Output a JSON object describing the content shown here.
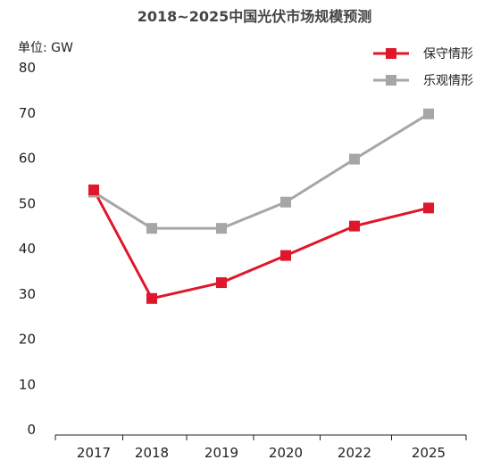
{
  "chart_data": {
    "type": "line",
    "title": "2018~2025中国光伏市场规模预测",
    "unit_label": "单位: GW",
    "categories": [
      "2017",
      "2018",
      "2019",
      "2020",
      "2022",
      "2025"
    ],
    "ylim": [
      0,
      80
    ],
    "y_ticks": [
      "0",
      "10",
      "20",
      "30",
      "40",
      "50",
      "60",
      "70",
      "80"
    ],
    "legend_position": "top-right",
    "grid": false,
    "series": [
      {
        "name": "保守情形",
        "color": "#e0162b",
        "values": [
          53,
          29,
          32.5,
          38.5,
          45,
          49
        ]
      },
      {
        "name": "乐观情形",
        "color": "#a6a6a6",
        "values": [
          52.5,
          44.5,
          44.5,
          50.3,
          59.8,
          69.8
        ]
      }
    ]
  }
}
